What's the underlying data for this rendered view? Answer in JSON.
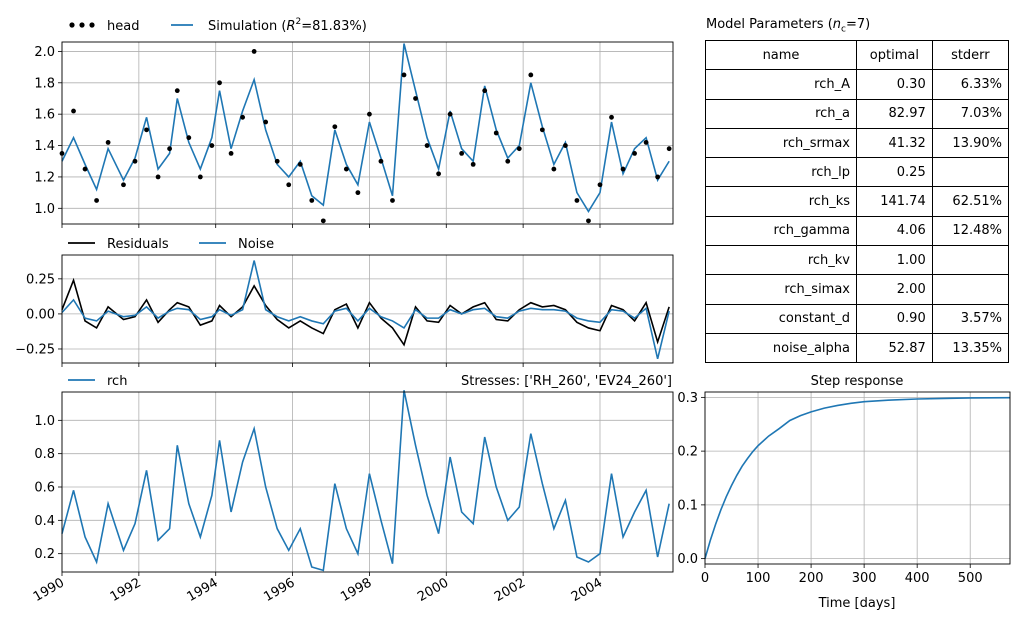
{
  "colors": {
    "simulation": "#1f77b4",
    "head": "#000000",
    "residuals": "#000000",
    "noise": "#1f77b4"
  },
  "params_panel": {
    "title": "Model Parameters (",
    "title_sym": "n",
    "title_sub": "c",
    "title_tail": "=7)",
    "headers": [
      "name",
      "optimal",
      "stderr"
    ],
    "rows": [
      [
        "rch_A",
        "0.30",
        "6.33%"
      ],
      [
        "rch_a",
        "82.97",
        "7.03%"
      ],
      [
        "rch_srmax",
        "41.32",
        "13.90%"
      ],
      [
        "rch_lp",
        "0.25",
        ""
      ],
      [
        "rch_ks",
        "141.74",
        "62.51%"
      ],
      [
        "rch_gamma",
        "4.06",
        "12.48%"
      ],
      [
        "rch_kv",
        "1.00",
        ""
      ],
      [
        "rch_simax",
        "2.00",
        ""
      ],
      [
        "constant_d",
        "0.90",
        "3.57%"
      ],
      [
        "noise_alpha",
        "52.87",
        "13.35%"
      ]
    ]
  },
  "chart_data": [
    {
      "type": "line",
      "panel": "head",
      "legend": "top-left",
      "series": [
        {
          "name": "head",
          "kind": "scatter",
          "x": [
            1990.0,
            1990.3,
            1990.6,
            1990.9,
            1991.2,
            1991.6,
            1991.9,
            1992.2,
            1992.5,
            1992.8,
            1993.0,
            1993.3,
            1993.6,
            1993.9,
            1994.1,
            1994.4,
            1994.7,
            1995.0,
            1995.3,
            1995.6,
            1995.9,
            1996.2,
            1996.5,
            1996.8,
            1997.1,
            1997.4,
            1997.7,
            1998.0,
            1998.3,
            1998.6,
            1998.9,
            1999.2,
            1999.5,
            1999.8,
            2000.1,
            2000.4,
            2000.7,
            2001.0,
            2001.3,
            2001.6,
            2001.9,
            2002.2,
            2002.5,
            2002.8,
            2003.1,
            2003.4,
            2003.7,
            2004.0,
            2004.3,
            2004.6,
            2004.9,
            2005.2,
            2005.5,
            2005.8
          ],
          "y": [
            1.35,
            1.62,
            1.25,
            1.05,
            1.42,
            1.15,
            1.3,
            1.5,
            1.2,
            1.38,
            1.75,
            1.45,
            1.2,
            1.4,
            1.8,
            1.35,
            1.58,
            2.0,
            1.55,
            1.3,
            1.15,
            1.28,
            1.05,
            0.92,
            1.52,
            1.25,
            1.1,
            1.6,
            1.3,
            1.05,
            1.85,
            1.7,
            1.4,
            1.22,
            1.6,
            1.35,
            1.28,
            1.75,
            1.48,
            1.3,
            1.38,
            1.85,
            1.5,
            1.25,
            1.4,
            1.05,
            0.92,
            1.15,
            1.58,
            1.25,
            1.35,
            1.42,
            1.2,
            1.38
          ]
        },
        {
          "name": "Simulation (R²=81.83%)",
          "kind": "line",
          "x": [
            1990.0,
            1990.3,
            1990.6,
            1990.9,
            1991.2,
            1991.6,
            1991.9,
            1992.2,
            1992.5,
            1992.8,
            1993.0,
            1993.3,
            1993.6,
            1993.9,
            1994.1,
            1994.4,
            1994.7,
            1995.0,
            1995.3,
            1995.6,
            1995.9,
            1996.2,
            1996.5,
            1996.8,
            1997.1,
            1997.4,
            1997.7,
            1998.0,
            1998.3,
            1998.6,
            1998.9,
            1999.2,
            1999.5,
            1999.8,
            2000.1,
            2000.4,
            2000.7,
            2001.0,
            2001.3,
            2001.6,
            2001.9,
            2002.2,
            2002.5,
            2002.8,
            2003.1,
            2003.4,
            2003.7,
            2004.0,
            2004.3,
            2004.6,
            2004.9,
            2005.2,
            2005.5,
            2005.8
          ],
          "y": [
            1.3,
            1.45,
            1.28,
            1.12,
            1.38,
            1.18,
            1.32,
            1.58,
            1.25,
            1.35,
            1.7,
            1.42,
            1.25,
            1.45,
            1.75,
            1.38,
            1.62,
            1.82,
            1.5,
            1.28,
            1.2,
            1.3,
            1.08,
            1.02,
            1.5,
            1.28,
            1.15,
            1.55,
            1.32,
            1.08,
            2.05,
            1.75,
            1.45,
            1.25,
            1.62,
            1.38,
            1.3,
            1.78,
            1.5,
            1.32,
            1.4,
            1.8,
            1.52,
            1.28,
            1.42,
            1.1,
            0.98,
            1.1,
            1.55,
            1.22,
            1.38,
            1.45,
            1.18,
            1.3
          ]
        }
      ],
      "ylim": [
        0.9,
        2.06
      ],
      "yticks": [
        1.0,
        1.2,
        1.4,
        1.6,
        1.8,
        2.0
      ],
      "ytick_labels": [
        "1.0",
        "1.2",
        "1.4",
        "1.6",
        "1.8",
        "2.0"
      ],
      "xlim": [
        1990.0,
        2005.9
      ],
      "grid": true
    },
    {
      "type": "line",
      "panel": "residuals",
      "legend": "top-left",
      "series": [
        {
          "name": "Residuals",
          "x": [
            1990.0,
            1990.3,
            1990.6,
            1990.9,
            1991.2,
            1991.6,
            1991.9,
            1992.2,
            1992.5,
            1992.8,
            1993.0,
            1993.3,
            1993.6,
            1993.9,
            1994.1,
            1994.4,
            1994.7,
            1995.0,
            1995.3,
            1995.6,
            1995.9,
            1996.2,
            1996.5,
            1996.8,
            1997.1,
            1997.4,
            1997.7,
            1998.0,
            1998.3,
            1998.6,
            1998.9,
            1999.2,
            1999.5,
            1999.8,
            2000.1,
            2000.4,
            2000.7,
            2001.0,
            2001.3,
            2001.6,
            2001.9,
            2002.2,
            2002.5,
            2002.8,
            2003.1,
            2003.4,
            2003.7,
            2004.0,
            2004.3,
            2004.6,
            2004.9,
            2005.2,
            2005.5,
            2005.8
          ],
          "y": [
            0.03,
            0.24,
            -0.05,
            -0.1,
            0.05,
            -0.04,
            -0.02,
            0.1,
            -0.06,
            0.03,
            0.08,
            0.05,
            -0.08,
            -0.05,
            0.06,
            -0.02,
            0.05,
            0.2,
            0.06,
            -0.04,
            -0.1,
            -0.05,
            -0.1,
            -0.14,
            0.03,
            0.07,
            -0.1,
            0.08,
            -0.03,
            -0.1,
            -0.22,
            0.05,
            -0.05,
            -0.06,
            0.06,
            0.0,
            0.05,
            0.08,
            -0.04,
            -0.05,
            0.03,
            0.08,
            0.05,
            0.06,
            0.03,
            -0.06,
            -0.1,
            -0.12,
            0.06,
            0.03,
            -0.05,
            0.08,
            -0.2,
            0.05
          ]
        },
        {
          "name": "Noise",
          "x": [
            1990.0,
            1990.3,
            1990.6,
            1990.9,
            1991.2,
            1991.6,
            1991.9,
            1992.2,
            1992.5,
            1992.8,
            1993.0,
            1993.3,
            1993.6,
            1993.9,
            1994.1,
            1994.4,
            1994.7,
            1995.0,
            1995.3,
            1995.6,
            1995.9,
            1996.2,
            1996.5,
            1996.8,
            1997.1,
            1997.4,
            1997.7,
            1998.0,
            1998.3,
            1998.6,
            1998.9,
            1999.2,
            1999.5,
            1999.8,
            2000.1,
            2000.4,
            2000.7,
            2001.0,
            2001.3,
            2001.6,
            2001.9,
            2002.2,
            2002.5,
            2002.8,
            2003.1,
            2003.4,
            2003.7,
            2004.0,
            2004.3,
            2004.6,
            2004.9,
            2005.2,
            2005.5,
            2005.8
          ],
          "y": [
            0.01,
            0.1,
            -0.03,
            -0.05,
            0.02,
            -0.02,
            -0.01,
            0.05,
            -0.03,
            0.02,
            0.04,
            0.03,
            -0.04,
            -0.02,
            0.03,
            -0.01,
            0.03,
            0.38,
            0.03,
            -0.02,
            -0.05,
            -0.02,
            -0.05,
            -0.07,
            0.02,
            0.04,
            -0.05,
            0.04,
            -0.02,
            -0.05,
            -0.1,
            0.03,
            -0.03,
            -0.03,
            0.03,
            0.0,
            0.03,
            0.04,
            -0.02,
            -0.03,
            0.02,
            0.04,
            0.03,
            0.03,
            0.02,
            -0.03,
            -0.05,
            -0.06,
            0.03,
            0.02,
            -0.03,
            0.04,
            -0.32,
            0.02
          ]
        }
      ],
      "ylim": [
        -0.35,
        0.42
      ],
      "yticks": [
        -0.25,
        0.0,
        0.25
      ],
      "ytick_labels": [
        "−0.25",
        "0.00",
        "0.25"
      ],
      "xlim": [
        1990.0,
        2005.9
      ],
      "grid": true
    },
    {
      "type": "line",
      "panel": "contribution",
      "title": "Stresses: ['RH_260', 'EV24_260']",
      "legend": "top-left",
      "series": [
        {
          "name": "rch",
          "x": [
            1990.0,
            1990.3,
            1990.6,
            1990.9,
            1991.2,
            1991.6,
            1991.9,
            1992.2,
            1992.5,
            1992.8,
            1993.0,
            1993.3,
            1993.6,
            1993.9,
            1994.1,
            1994.4,
            1994.7,
            1995.0,
            1995.3,
            1995.6,
            1995.9,
            1996.2,
            1996.5,
            1996.8,
            1997.1,
            1997.4,
            1997.7,
            1998.0,
            1998.3,
            1998.6,
            1998.9,
            1999.2,
            1999.5,
            1999.8,
            2000.1,
            2000.4,
            2000.7,
            2001.0,
            2001.3,
            2001.6,
            2001.9,
            2002.2,
            2002.5,
            2002.8,
            2003.1,
            2003.4,
            2003.7,
            2004.0,
            2004.3,
            2004.6,
            2004.9,
            2005.2,
            2005.5,
            2005.8
          ],
          "y": [
            0.32,
            0.58,
            0.3,
            0.15,
            0.5,
            0.22,
            0.38,
            0.7,
            0.28,
            0.35,
            0.85,
            0.5,
            0.3,
            0.55,
            0.88,
            0.45,
            0.75,
            0.95,
            0.6,
            0.35,
            0.22,
            0.35,
            0.12,
            0.1,
            0.62,
            0.35,
            0.2,
            0.68,
            0.4,
            0.14,
            1.18,
            0.85,
            0.55,
            0.32,
            0.78,
            0.45,
            0.38,
            0.9,
            0.6,
            0.4,
            0.48,
            0.92,
            0.62,
            0.35,
            0.52,
            0.18,
            0.15,
            0.2,
            0.68,
            0.3,
            0.45,
            0.58,
            0.18,
            0.5
          ]
        }
      ],
      "ylim": [
        0.09,
        1.17
      ],
      "yticks": [
        0.2,
        0.4,
        0.6,
        0.8,
        1.0
      ],
      "ytick_labels": [
        "0.2",
        "0.4",
        "0.6",
        "0.8",
        "1.0"
      ],
      "xlim": [
        1990.0,
        2005.9
      ],
      "xticks": [
        1990,
        1992,
        1994,
        1996,
        1998,
        2000,
        2002,
        2004
      ],
      "xtick_labels": [
        "1990",
        "1992",
        "1994",
        "1996",
        "1998",
        "2000",
        "2002",
        "2004"
      ],
      "grid": true
    },
    {
      "type": "line",
      "panel": "step",
      "title": "Step response",
      "xlabel": "Time [days]",
      "series": [
        {
          "x": [
            0,
            10,
            20,
            30,
            40,
            50,
            60,
            70,
            80,
            90,
            100,
            120,
            140,
            160,
            180,
            200,
            225,
            250,
            275,
            300,
            350,
            400,
            450,
            500,
            575
          ],
          "y": [
            0.0,
            0.034,
            0.064,
            0.091,
            0.115,
            0.136,
            0.155,
            0.172,
            0.186,
            0.199,
            0.21,
            0.228,
            0.242,
            0.257,
            0.266,
            0.273,
            0.28,
            0.285,
            0.289,
            0.292,
            0.295,
            0.297,
            0.298,
            0.299,
            0.2995
          ]
        }
      ],
      "xlim": [
        0,
        575
      ],
      "ylim": [
        -0.01,
        0.31
      ],
      "xticks": [
        0,
        100,
        200,
        300,
        400,
        500
      ],
      "xtick_labels": [
        "0",
        "100",
        "200",
        "300",
        "400",
        "500"
      ],
      "yticks": [
        0.0,
        0.1,
        0.2,
        0.3
      ],
      "ytick_labels": [
        "0.0",
        "0.1",
        "0.2",
        "0.3"
      ],
      "grid": true
    }
  ]
}
